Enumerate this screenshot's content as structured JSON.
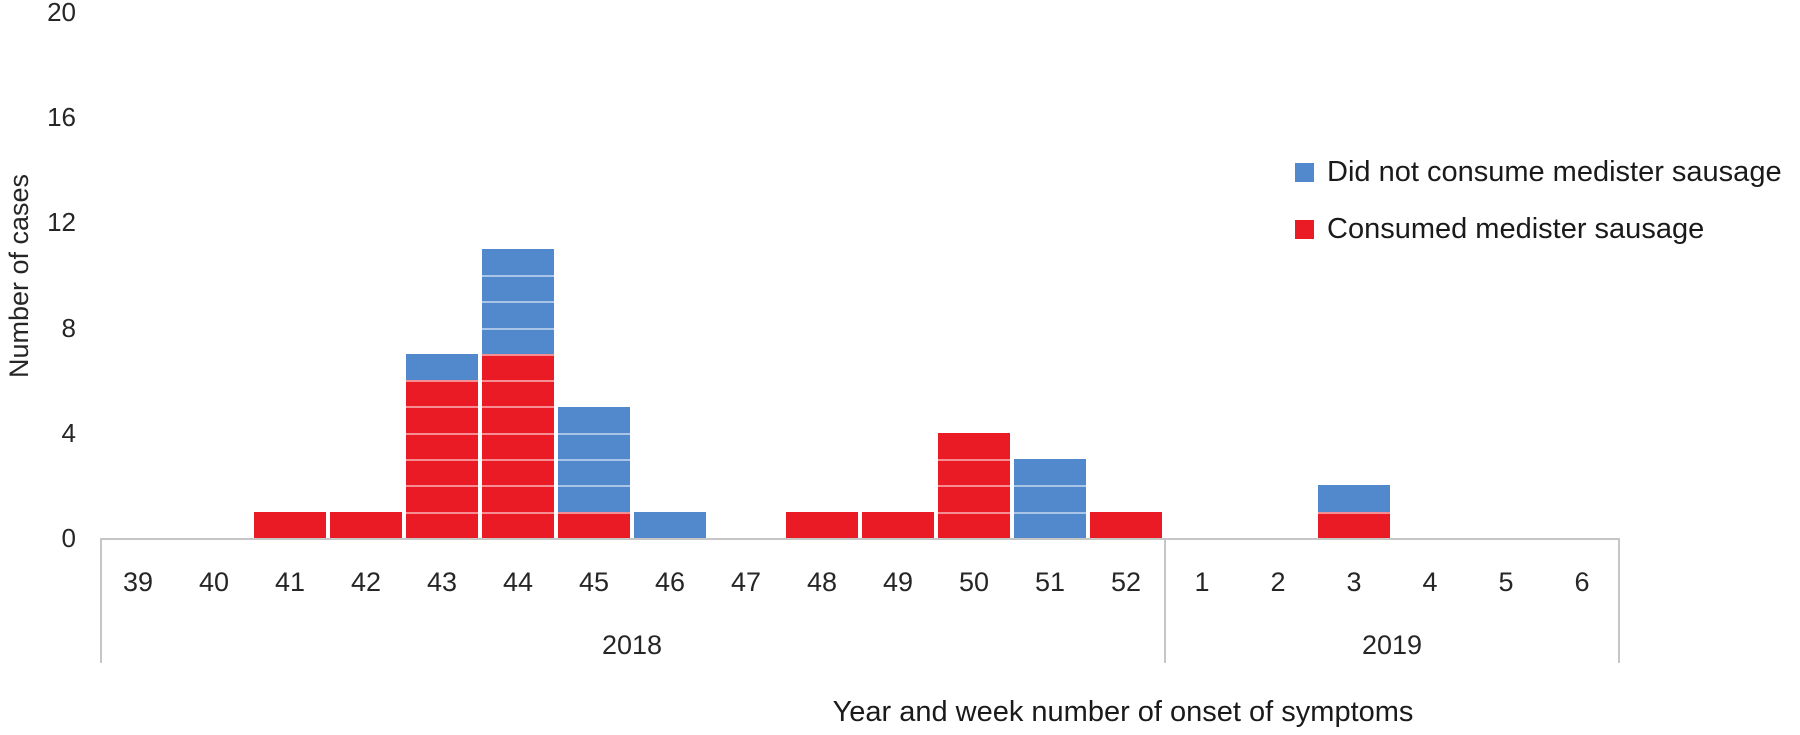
{
  "chart_data": {
    "type": "bar",
    "stacked": true,
    "unit_segments": true,
    "grid": false,
    "legend_position": "top-right",
    "xlabel": "Year and week number of onset of symptoms",
    "ylabel": "Number of cases",
    "ylim": [
      0,
      20
    ],
    "yticks": [
      0,
      4,
      8,
      12,
      16,
      20
    ],
    "categories": [
      "39",
      "40",
      "41",
      "42",
      "43",
      "44",
      "45",
      "46",
      "47",
      "48",
      "49",
      "50",
      "51",
      "52",
      "1",
      "2",
      "3",
      "4",
      "5",
      "6"
    ],
    "year_groups": [
      {
        "label": "2018",
        "span": 14
      },
      {
        "label": "2019",
        "span": 6
      }
    ],
    "series": [
      {
        "name": "Did not consume medister sausage",
        "color": "#5288CC",
        "values": [
          0,
          0,
          0,
          0,
          1,
          4,
          4,
          1,
          0,
          0,
          0,
          0,
          3,
          0,
          0,
          0,
          1,
          0,
          0,
          0
        ]
      },
      {
        "name": "Consumed medister sausage",
        "color": "#EB1B25",
        "values": [
          0,
          0,
          1,
          1,
          6,
          7,
          1,
          0,
          0,
          1,
          1,
          4,
          0,
          1,
          0,
          0,
          1,
          0,
          0,
          0
        ]
      }
    ],
    "colors": {
      "axis_line": "#C6C6C6",
      "text": "#262626",
      "segment_separator": "rgba(255,255,255,0.5)"
    }
  }
}
